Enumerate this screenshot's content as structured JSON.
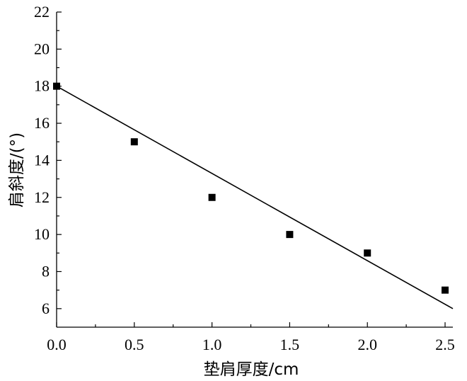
{
  "chart_data": {
    "type": "scatter",
    "xlabel": "垫肩厚度/cm",
    "ylabel": "肩斜度/(°)",
    "xlim": [
      0,
      2.55
    ],
    "ylim": [
      5,
      22
    ],
    "x_ticks": [
      0.0,
      0.5,
      1.0,
      1.5,
      2.0,
      2.5
    ],
    "x_tick_labels": [
      "0.0",
      "0.5",
      "1.0",
      "1.5",
      "2.0",
      "2.5"
    ],
    "y_ticks": [
      6,
      8,
      10,
      12,
      14,
      16,
      18,
      20,
      22
    ],
    "y_tick_labels": [
      "6",
      "8",
      "10",
      "12",
      "14",
      "16",
      "18",
      "20",
      "22"
    ],
    "grid": false,
    "series": [
      {
        "x": [
          0.0,
          0.5,
          1.0,
          1.5,
          2.0,
          2.5
        ],
        "y": [
          18,
          15,
          12,
          10,
          9,
          7
        ],
        "marker": "square",
        "color": "#000000"
      }
    ],
    "fit_line": {
      "x": [
        0.0,
        2.55
      ],
      "y": [
        18.0,
        6.0
      ],
      "color": "#000000"
    }
  }
}
